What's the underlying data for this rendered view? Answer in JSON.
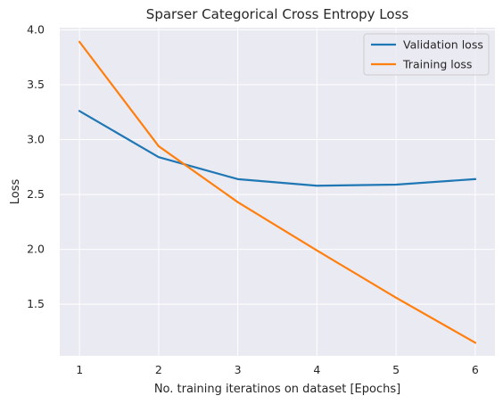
{
  "chart_data": {
    "type": "line",
    "title": "Sparser Categorical Cross Entropy Loss",
    "xlabel": "No. training iteratinos on dataset [Epochs]",
    "ylabel": "Loss",
    "x": [
      1,
      2,
      3,
      4,
      5,
      6
    ],
    "xticks": [
      "1",
      "2",
      "3",
      "4",
      "5",
      "6"
    ],
    "yticks": [
      "1.5",
      "2.0",
      "2.5",
      "3.0",
      "3.5",
      "4.0"
    ],
    "xlim": [
      0.75,
      6.25
    ],
    "ylim": [
      1.03,
      4.02
    ],
    "grid": true,
    "legend_position": "top-right",
    "series": [
      {
        "name": "Validation loss",
        "color": "#1f77b4",
        "values": [
          3.26,
          2.84,
          2.64,
          2.58,
          2.59,
          2.64
        ]
      },
      {
        "name": "Training loss",
        "color": "#ff7f0e",
        "values": [
          3.89,
          2.94,
          2.43,
          1.99,
          1.56,
          1.15
        ]
      }
    ]
  }
}
